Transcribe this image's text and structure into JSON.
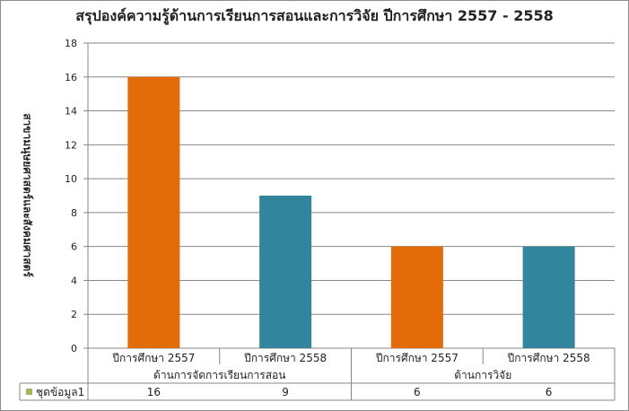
{
  "chart_data": {
    "type": "bar",
    "title": "สรุปองค์ความรู้ด้านการเรียนการสอนและการวิจัย ปีการศึกษา 2557 - 2558",
    "ylabel": "สาขามนุษยศาสตร์และสังคมศาสตร์",
    "ylim": [
      0,
      18
    ],
    "yticks": [
      "0",
      "2",
      "4",
      "6",
      "8",
      "10",
      "12",
      "14",
      "16",
      "18"
    ],
    "categories": [
      "ปีการศึกษา 2557",
      "ปีการศึกษา 2558",
      "ปีการศึกษา 2557",
      "ปีการศึกษา 2558"
    ],
    "groups": [
      {
        "label": "ด้านการจัดการเรียนการสอน",
        "span": 2
      },
      {
        "label": "ด้านการวิจัย",
        "span": 2
      }
    ],
    "series": [
      {
        "name": "ชุดข้อมูล1",
        "values": [
          16,
          9,
          6,
          6
        ],
        "display": [
          "16",
          "9",
          "6",
          "6"
        ]
      }
    ],
    "bar_colors": [
      "#e36c09",
      "#31859c",
      "#e36c09",
      "#31859c"
    ],
    "legend_color": "#9bbb59",
    "grid": true,
    "legend": "data-table"
  }
}
